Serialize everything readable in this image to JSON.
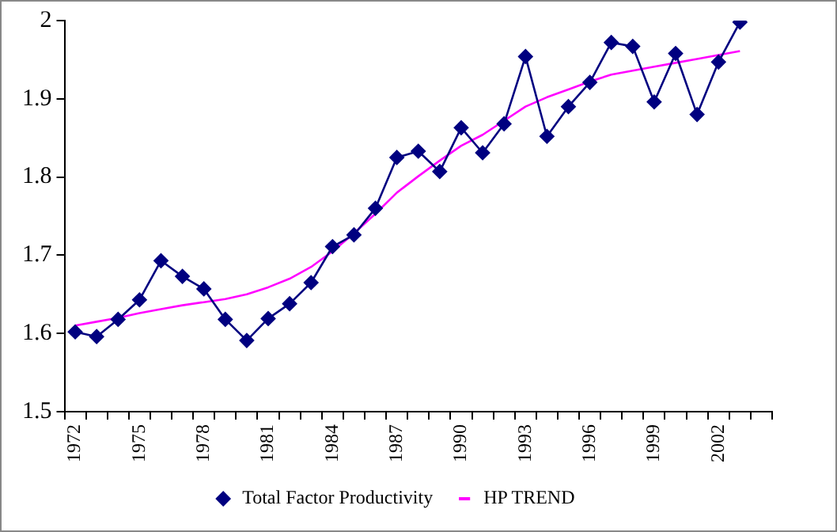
{
  "chart_data": {
    "type": "line",
    "categories": [
      "1972",
      null,
      null,
      "1975",
      null,
      null,
      "1978",
      null,
      null,
      "1981",
      null,
      null,
      "1984",
      null,
      null,
      "1987",
      null,
      null,
      "1990",
      null,
      null,
      "1993",
      null,
      null,
      "1996",
      null,
      null,
      "1999",
      null,
      null,
      "2002",
      null,
      null
    ],
    "series": [
      {
        "name": "Total Factor Productivity",
        "color": "#000080",
        "marker": "diamond",
        "values": [
          1.602,
          1.596,
          1.618,
          1.643,
          1.693,
          1.673,
          1.657,
          1.618,
          1.591,
          1.619,
          1.638,
          1.665,
          1.711,
          1.726,
          1.76,
          1.825,
          1.833,
          1.807,
          1.863,
          1.831,
          1.868,
          1.954,
          1.852,
          1.89,
          1.921,
          1.972,
          1.967,
          1.896,
          1.958,
          1.88,
          1.947,
          1.998,
          null
        ]
      },
      {
        "name": "HP TREND",
        "color": "#ff00ff",
        "marker": "none",
        "values": [
          1.61,
          1.615,
          1.62,
          1.626,
          1.631,
          1.636,
          1.64,
          1.644,
          1.65,
          1.659,
          1.67,
          1.685,
          1.705,
          1.728,
          1.753,
          1.78,
          1.801,
          1.821,
          1.84,
          1.854,
          1.872,
          1.89,
          1.902,
          1.912,
          1.922,
          1.931,
          1.936,
          1.941,
          1.946,
          1.951,
          1.956,
          1.961,
          null
        ]
      }
    ],
    "ylim": [
      1.5,
      2
    ],
    "yticks": [
      1.5,
      1.6,
      1.7,
      1.8,
      1.9,
      2
    ],
    "grid": false,
    "legend": "bottom"
  }
}
